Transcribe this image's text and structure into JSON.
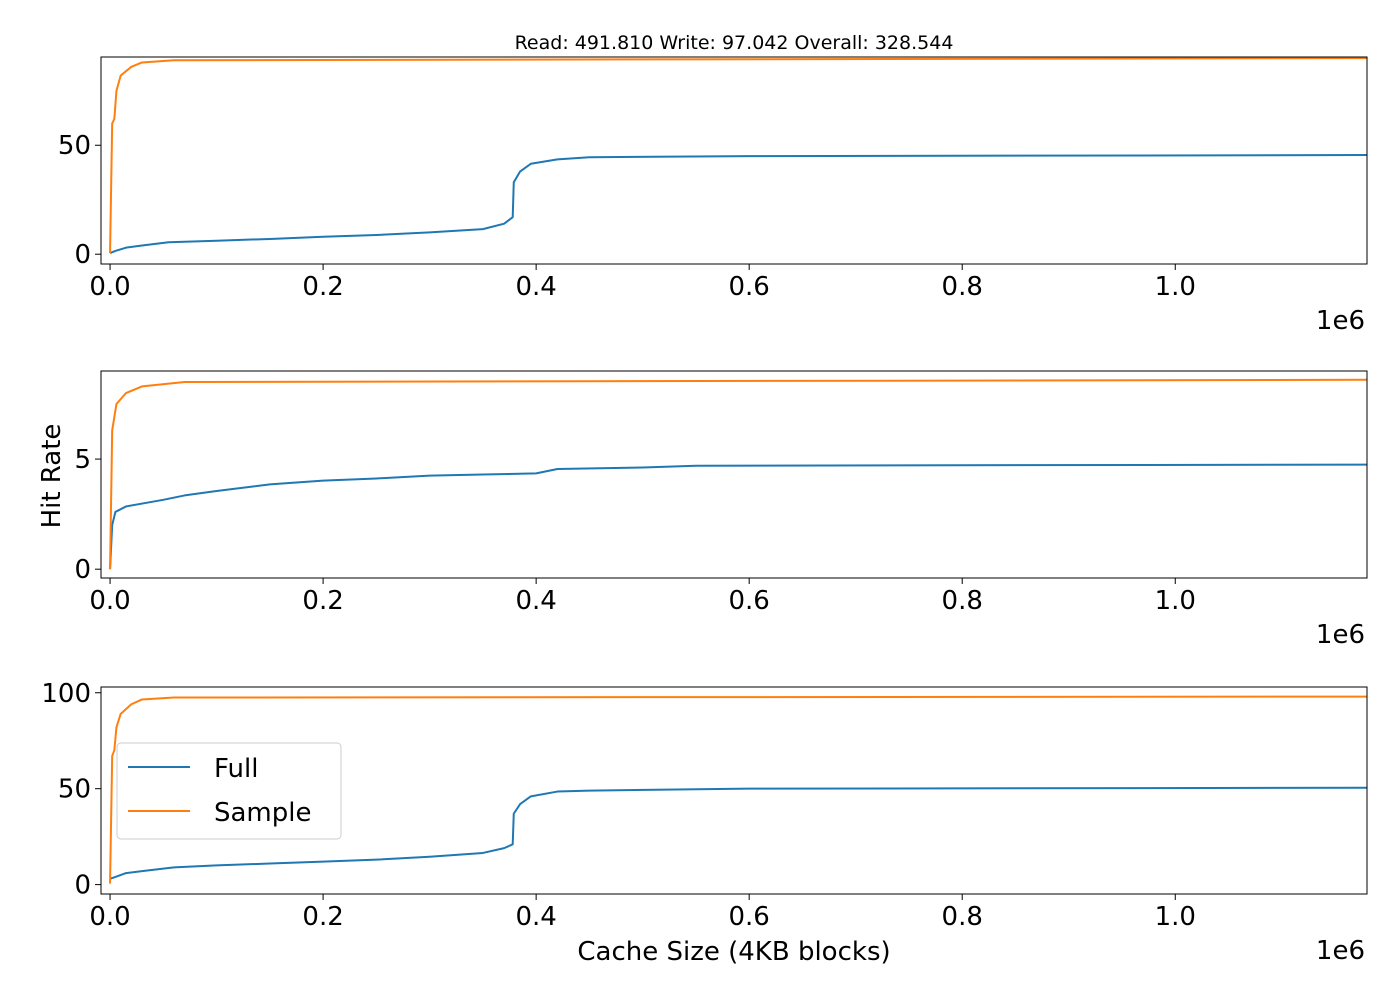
{
  "chart_data": [
    {
      "type": "line",
      "title": "Read: 491.810 Write: 97.042 Overall: 328.544",
      "xlabel": "",
      "ylabel": "",
      "x_offset_label": "1e6",
      "xlim": [
        -0.0085,
        1.18
      ],
      "ylim": [
        -4.5,
        90.5
      ],
      "xticks": [
        0.0,
        0.2,
        0.4,
        0.6,
        0.8,
        1.0
      ],
      "xtick_labels": [
        "0.0",
        "0.2",
        "0.4",
        "0.6",
        "0.8",
        "1.0"
      ],
      "yticks": [
        0,
        50
      ],
      "ytick_labels": [
        "0",
        "50"
      ],
      "series": [
        {
          "name": "Full",
          "color": "#1f77b4",
          "points": [
            [
              0.0,
              0.5
            ],
            [
              0.005,
              1.5
            ],
            [
              0.015,
              3
            ],
            [
              0.03,
              4
            ],
            [
              0.055,
              5.5
            ],
            [
              0.1,
              6.2
            ],
            [
              0.15,
              7
            ],
            [
              0.2,
              8
            ],
            [
              0.25,
              8.8
            ],
            [
              0.3,
              10
            ],
            [
              0.35,
              11.5
            ],
            [
              0.37,
              14
            ],
            [
              0.378,
              17
            ],
            [
              0.379,
              33
            ],
            [
              0.385,
              38
            ],
            [
              0.395,
              41.5
            ],
            [
              0.42,
              43.5
            ],
            [
              0.45,
              44.5
            ],
            [
              0.6,
              45
            ],
            [
              1.18,
              45.5
            ]
          ]
        },
        {
          "name": "Sample",
          "color": "#ff7f0e",
          "points": [
            [
              0.0,
              0.5
            ],
            [
              0.002,
              60
            ],
            [
              0.004,
              62
            ],
            [
              0.006,
              75
            ],
            [
              0.01,
              82
            ],
            [
              0.02,
              86
            ],
            [
              0.03,
              88
            ],
            [
              0.06,
              89
            ],
            [
              1.18,
              90
            ]
          ]
        }
      ]
    },
    {
      "type": "line",
      "title": "",
      "xlabel": "",
      "ylabel": "Hit Rate",
      "x_offset_label": "1e6",
      "xlim": [
        -0.0085,
        1.18
      ],
      "ylim": [
        -0.4,
        9.0
      ],
      "xticks": [
        0.0,
        0.2,
        0.4,
        0.6,
        0.8,
        1.0
      ],
      "xtick_labels": [
        "0.0",
        "0.2",
        "0.4",
        "0.6",
        "0.8",
        "1.0"
      ],
      "yticks": [
        0,
        5
      ],
      "ytick_labels": [
        "0",
        "5"
      ],
      "series": [
        {
          "name": "Full",
          "color": "#1f77b4",
          "points": [
            [
              0.0,
              0.0
            ],
            [
              0.002,
              2.0
            ],
            [
              0.005,
              2.6
            ],
            [
              0.015,
              2.85
            ],
            [
              0.05,
              3.15
            ],
            [
              0.07,
              3.35
            ],
            [
              0.1,
              3.55
            ],
            [
              0.15,
              3.85
            ],
            [
              0.2,
              4.02
            ],
            [
              0.25,
              4.12
            ],
            [
              0.3,
              4.25
            ],
            [
              0.35,
              4.3
            ],
            [
              0.4,
              4.35
            ],
            [
              0.42,
              4.55
            ],
            [
              0.5,
              4.62
            ],
            [
              0.55,
              4.7
            ],
            [
              1.18,
              4.75
            ]
          ]
        },
        {
          "name": "Sample",
          "color": "#ff7f0e",
          "points": [
            [
              0.0,
              0.0
            ],
            [
              0.002,
              6.3
            ],
            [
              0.006,
              7.5
            ],
            [
              0.015,
              8.0
            ],
            [
              0.03,
              8.3
            ],
            [
              0.07,
              8.5
            ],
            [
              1.18,
              8.6
            ]
          ]
        }
      ]
    },
    {
      "type": "line",
      "title": "",
      "xlabel": "Cache Size (4KB blocks)",
      "ylabel": "",
      "x_offset_label": "1e6",
      "xlim": [
        -0.0085,
        1.18
      ],
      "ylim": [
        -4.9,
        103
      ],
      "xticks": [
        0.0,
        0.2,
        0.4,
        0.6,
        0.8,
        1.0
      ],
      "xtick_labels": [
        "0.0",
        "0.2",
        "0.4",
        "0.6",
        "0.8",
        "1.0"
      ],
      "yticks": [
        0,
        50,
        100
      ],
      "ytick_labels": [
        "0",
        "50",
        "100"
      ],
      "legend": {
        "position": "center-left",
        "entries": [
          "Full",
          "Sample"
        ]
      },
      "series": [
        {
          "name": "Full",
          "color": "#1f77b4",
          "points": [
            [
              0.0,
              3
            ],
            [
              0.005,
              4
            ],
            [
              0.015,
              6
            ],
            [
              0.03,
              7
            ],
            [
              0.06,
              9
            ],
            [
              0.1,
              10
            ],
            [
              0.15,
              11
            ],
            [
              0.2,
              12
            ],
            [
              0.25,
              13
            ],
            [
              0.3,
              14.5
            ],
            [
              0.35,
              16.5
            ],
            [
              0.37,
              19
            ],
            [
              0.378,
              21
            ],
            [
              0.379,
              37
            ],
            [
              0.385,
              42
            ],
            [
              0.395,
              46
            ],
            [
              0.42,
              48.5
            ],
            [
              0.45,
              49
            ],
            [
              0.6,
              50
            ],
            [
              1.18,
              50.5
            ]
          ]
        },
        {
          "name": "Sample",
          "color": "#ff7f0e",
          "points": [
            [
              0.0,
              0.5
            ],
            [
              0.002,
              67
            ],
            [
              0.004,
              70
            ],
            [
              0.006,
              82
            ],
            [
              0.01,
              89
            ],
            [
              0.02,
              94
            ],
            [
              0.03,
              96.5
            ],
            [
              0.06,
              97.5
            ],
            [
              1.18,
              98
            ]
          ]
        }
      ]
    }
  ]
}
